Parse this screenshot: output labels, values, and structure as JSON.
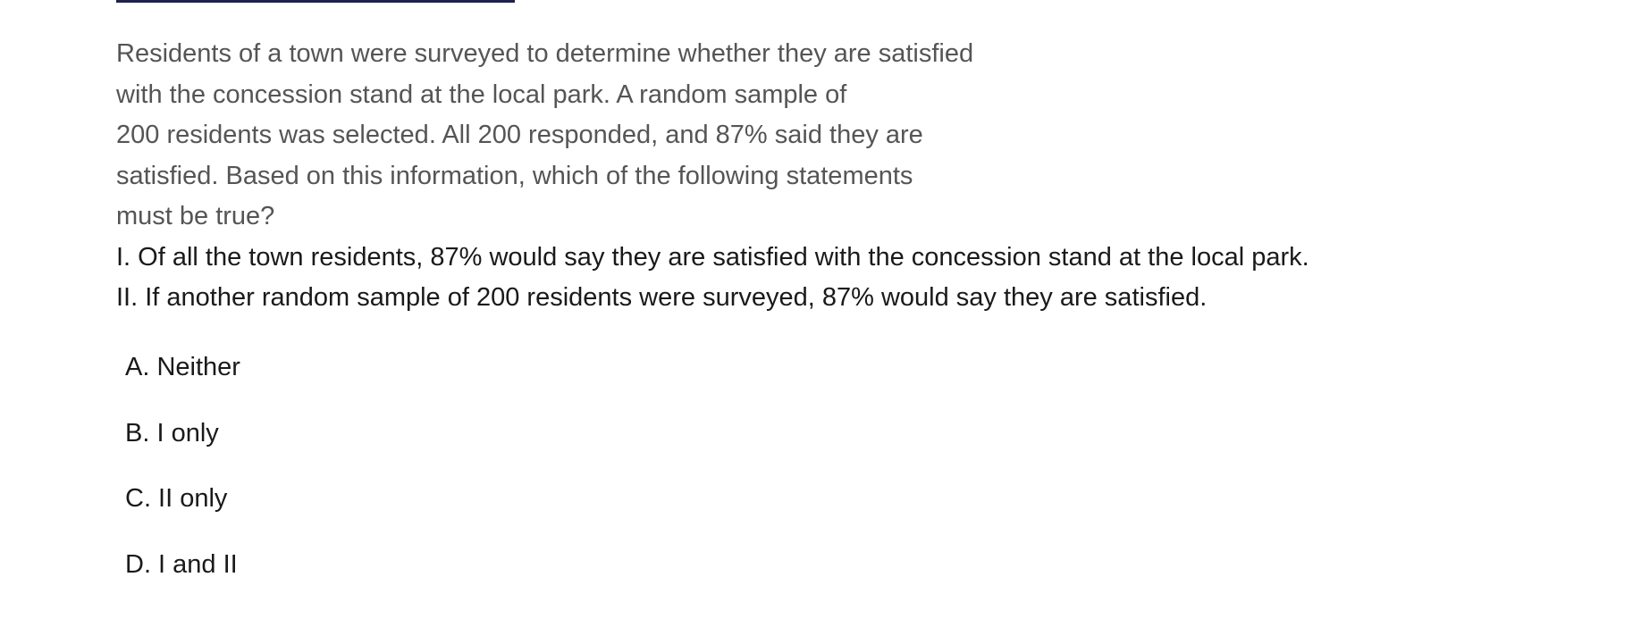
{
  "question": {
    "stem_lines": [
      "Residents of a town were surveyed to determine whether they are satisfied",
      "with the concession stand at the local park. A random sample of",
      "200 residents was selected. All 200 responded, and 87% said they are",
      "satisfied. Based on this information, which of the following statements",
      "must be true?"
    ],
    "statements": [
      "I. Of all the town residents, 87% would say they are satisfied with the concession stand at the local park.",
      "II. If another random sample of 200 residents were surveyed, 87% would say they are satisfied."
    ]
  },
  "choices": [
    {
      "label": "A. Neither"
    },
    {
      "label": "B. I only"
    },
    {
      "label": "C. II only"
    },
    {
      "label": "D. I and II"
    }
  ]
}
